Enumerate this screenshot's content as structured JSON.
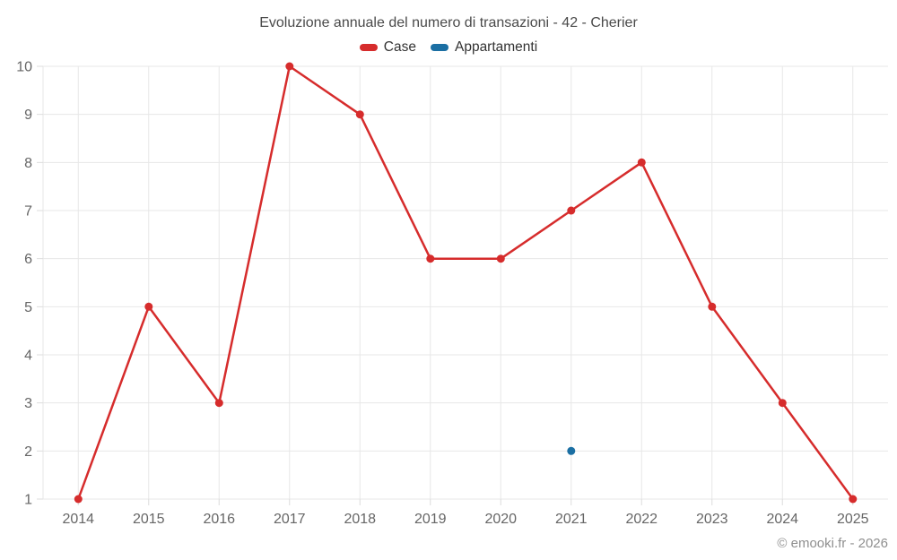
{
  "colors": {
    "case_red": "#d62c2c",
    "appartamenti_blue": "#1b6fa3",
    "grid": "#e7e7e7",
    "tick": "#dcdcdc",
    "axis_label": "#666666",
    "title": "#4a4a4a",
    "legend_text": "#333333",
    "credit_text": "#8f8f8f"
  },
  "footer": {
    "credit": "© emooki.fr - 2026"
  },
  "chart_data": {
    "type": "line",
    "title": "Evoluzione annuale del numero di transazioni - 42 - Cherier",
    "categories": [
      "2014",
      "2015",
      "2016",
      "2017",
      "2018",
      "2019",
      "2020",
      "2021",
      "2022",
      "2023",
      "2024",
      "2025"
    ],
    "series": [
      {
        "name": "Case",
        "color": "#d62c2c",
        "values": [
          1,
          5,
          3,
          10,
          9,
          6,
          6,
          7,
          8,
          5,
          3,
          1
        ]
      },
      {
        "name": "Appartamenti",
        "color": "#1b6fa3",
        "values": [
          null,
          null,
          null,
          null,
          null,
          null,
          null,
          2,
          null,
          null,
          null,
          null
        ]
      }
    ],
    "ylim": [
      1,
      10
    ],
    "ytick_step": 1,
    "xlabel": "",
    "ylabel": "",
    "grid": true,
    "legend_position": "top"
  }
}
